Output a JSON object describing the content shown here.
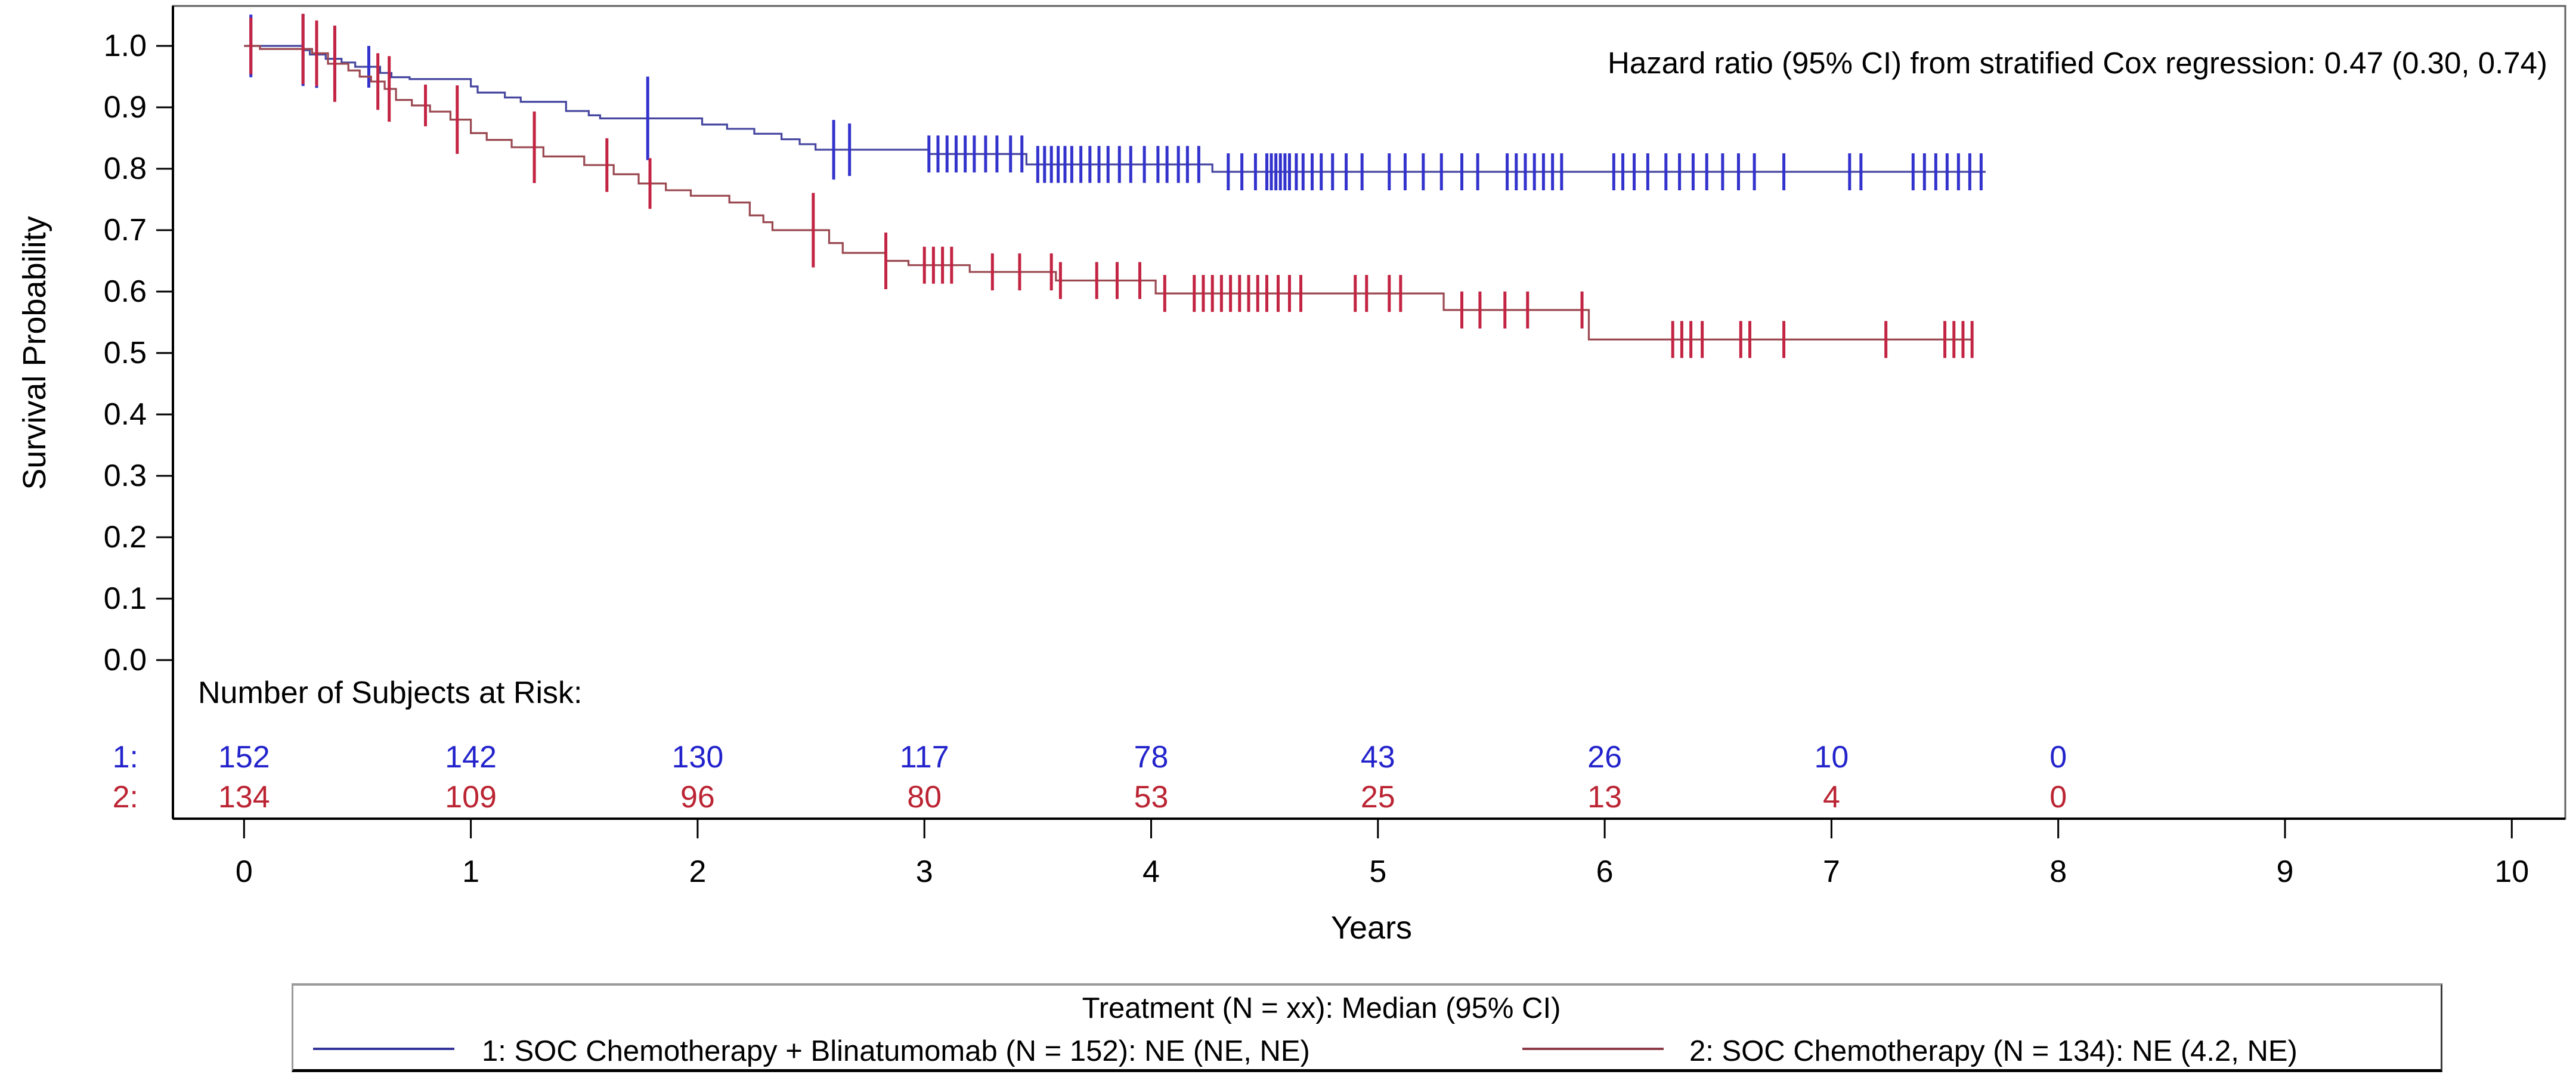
{
  "chart_data": {
    "type": "line",
    "subtype": "kaplan_meier_step",
    "title": "",
    "xlabel": "Years",
    "ylabel": "Survival Probability",
    "annotation": "Hazard ratio (95% CI) from stratified Cox regression: 0.47 (0.30, 0.74)",
    "xlim": [
      0,
      10
    ],
    "ylim": [
      0.0,
      1.0
    ],
    "xticks": [
      "0",
      "1",
      "2",
      "3",
      "4",
      "5",
      "6",
      "7",
      "8",
      "9",
      "10"
    ],
    "yticks": [
      "1.0",
      "0.9",
      "0.8",
      "0.7",
      "0.6",
      "0.5",
      "0.4",
      "0.3",
      "0.2",
      "0.1",
      "0.0"
    ],
    "grid": false,
    "legend_position": "bottom",
    "series": [
      {
        "id": "1",
        "name": "1: SOC Chemotherapy + Blinatumomab (N = 152): NE (NE, NE)",
        "line_color": "#4646a0",
        "censor_color": "#3232cd",
        "steps": [
          [
            0,
            1.0
          ],
          [
            0.26,
            0.993
          ],
          [
            0.29,
            0.986
          ],
          [
            0.36,
            0.979
          ],
          [
            0.43,
            0.973
          ],
          [
            0.49,
            0.966
          ],
          [
            0.6,
            0.956
          ],
          [
            0.65,
            0.949
          ],
          [
            0.73,
            0.946
          ],
          [
            1.0,
            0.934
          ],
          [
            1.03,
            0.924
          ],
          [
            1.15,
            0.916
          ],
          [
            1.22,
            0.909
          ],
          [
            1.42,
            0.894
          ],
          [
            1.52,
            0.887
          ],
          [
            1.57,
            0.882
          ],
          [
            2.02,
            0.872
          ],
          [
            2.13,
            0.865
          ],
          [
            2.25,
            0.857
          ],
          [
            2.37,
            0.848
          ],
          [
            2.45,
            0.84
          ],
          [
            2.52,
            0.831
          ],
          [
            3.02,
            0.824
          ],
          [
            3.45,
            0.807
          ],
          [
            4.27,
            0.795
          ]
        ],
        "end_time": 7.68,
        "censors": [
          [
            0.03,
            105
          ],
          [
            0.26,
            120
          ],
          [
            0.32,
            112
          ],
          [
            0.4,
            108
          ],
          [
            0.55,
            70
          ],
          [
            1.78,
            140
          ],
          [
            2.6,
            100
          ],
          [
            2.67,
            88
          ],
          [
            3.02,
            62
          ],
          [
            3.06,
            62
          ],
          [
            3.1,
            62
          ],
          [
            3.14,
            62
          ],
          [
            3.18,
            62
          ],
          [
            3.22,
            62
          ],
          [
            3.27,
            62
          ],
          [
            3.32,
            62
          ],
          [
            3.38,
            62
          ],
          [
            3.43,
            62
          ],
          [
            3.5,
            62
          ],
          [
            3.53,
            62
          ],
          [
            3.56,
            62
          ],
          [
            3.59,
            62
          ],
          [
            3.62,
            62
          ],
          [
            3.65,
            62
          ],
          [
            3.69,
            62
          ],
          [
            3.73,
            62
          ],
          [
            3.77,
            62
          ],
          [
            3.81,
            62
          ],
          [
            3.86,
            62
          ],
          [
            3.91,
            62
          ],
          [
            3.97,
            62
          ],
          [
            4.03,
            62
          ],
          [
            4.07,
            62
          ],
          [
            4.12,
            62
          ],
          [
            4.16,
            62
          ],
          [
            4.21,
            62
          ],
          [
            4.34,
            62
          ],
          [
            4.4,
            62
          ],
          [
            4.46,
            62
          ],
          [
            4.51,
            62
          ],
          [
            4.53,
            62
          ],
          [
            4.55,
            62
          ],
          [
            4.57,
            62
          ],
          [
            4.59,
            62
          ],
          [
            4.61,
            62
          ],
          [
            4.64,
            62
          ],
          [
            4.67,
            62
          ],
          [
            4.71,
            62
          ],
          [
            4.75,
            62
          ],
          [
            4.8,
            62
          ],
          [
            4.86,
            62
          ],
          [
            4.93,
            62
          ],
          [
            5.05,
            62
          ],
          [
            5.12,
            62
          ],
          [
            5.2,
            62
          ],
          [
            5.28,
            62
          ],
          [
            5.37,
            62
          ],
          [
            5.44,
            62
          ],
          [
            5.57,
            62
          ],
          [
            5.61,
            62
          ],
          [
            5.65,
            62
          ],
          [
            5.69,
            62
          ],
          [
            5.73,
            62
          ],
          [
            5.77,
            62
          ],
          [
            5.81,
            62
          ],
          [
            6.04,
            62
          ],
          [
            6.08,
            62
          ],
          [
            6.13,
            62
          ],
          [
            6.19,
            62
          ],
          [
            6.27,
            62
          ],
          [
            6.33,
            62
          ],
          [
            6.39,
            62
          ],
          [
            6.45,
            62
          ],
          [
            6.52,
            62
          ],
          [
            6.59,
            62
          ],
          [
            6.66,
            62
          ],
          [
            6.79,
            62
          ],
          [
            7.08,
            62
          ],
          [
            7.13,
            62
          ],
          [
            7.36,
            62
          ],
          [
            7.41,
            62
          ],
          [
            7.46,
            62
          ],
          [
            7.51,
            62
          ],
          [
            7.56,
            62
          ],
          [
            7.61,
            62
          ],
          [
            7.66,
            62
          ]
        ]
      },
      {
        "id": "2",
        "name": "2: SOC Chemotherapy (N = 134): NE (4.2, NE)",
        "line_color": "#9a4850",
        "censor_color": "#c32443",
        "steps": [
          [
            0,
            1.0
          ],
          [
            0.07,
            0.995
          ],
          [
            0.3,
            0.988
          ],
          [
            0.37,
            0.971
          ],
          [
            0.46,
            0.96
          ],
          [
            0.51,
            0.95
          ],
          [
            0.56,
            0.942
          ],
          [
            0.62,
            0.93
          ],
          [
            0.67,
            0.912
          ],
          [
            0.74,
            0.903
          ],
          [
            0.82,
            0.893
          ],
          [
            0.91,
            0.88
          ],
          [
            1.0,
            0.858
          ],
          [
            1.07,
            0.847
          ],
          [
            1.18,
            0.835
          ],
          [
            1.32,
            0.82
          ],
          [
            1.5,
            0.806
          ],
          [
            1.63,
            0.791
          ],
          [
            1.74,
            0.776
          ],
          [
            1.86,
            0.765
          ],
          [
            1.97,
            0.756
          ],
          [
            2.14,
            0.745
          ],
          [
            2.23,
            0.724
          ],
          [
            2.29,
            0.713
          ],
          [
            2.33,
            0.7
          ],
          [
            2.58,
            0.679
          ],
          [
            2.64,
            0.663
          ],
          [
            2.83,
            0.65
          ],
          [
            2.93,
            0.643
          ],
          [
            3.2,
            0.632
          ],
          [
            3.58,
            0.618
          ],
          [
            4.02,
            0.597
          ],
          [
            5.29,
            0.57
          ],
          [
            5.93,
            0.522
          ]
        ],
        "end_time": 7.62,
        "censors": [
          [
            0.03,
            95
          ],
          [
            0.26,
            118
          ],
          [
            0.32,
            110
          ],
          [
            0.4,
            128
          ],
          [
            0.59,
            95
          ],
          [
            0.64,
            110
          ],
          [
            0.8,
            70
          ],
          [
            0.94,
            115
          ],
          [
            1.28,
            120
          ],
          [
            1.6,
            90
          ],
          [
            1.79,
            85
          ],
          [
            2.51,
            125
          ],
          [
            2.83,
            95
          ],
          [
            3.0,
            62
          ],
          [
            3.04,
            62
          ],
          [
            3.08,
            62
          ],
          [
            3.12,
            62
          ],
          [
            3.3,
            62
          ],
          [
            3.42,
            62
          ],
          [
            3.56,
            62
          ],
          [
            3.6,
            62
          ],
          [
            3.76,
            62
          ],
          [
            3.85,
            62
          ],
          [
            3.95,
            62
          ],
          [
            4.06,
            62
          ],
          [
            4.19,
            62
          ],
          [
            4.23,
            62
          ],
          [
            4.27,
            62
          ],
          [
            4.31,
            62
          ],
          [
            4.35,
            62
          ],
          [
            4.39,
            62
          ],
          [
            4.43,
            62
          ],
          [
            4.47,
            62
          ],
          [
            4.51,
            62
          ],
          [
            4.56,
            62
          ],
          [
            4.61,
            62
          ],
          [
            4.66,
            62
          ],
          [
            4.9,
            62
          ],
          [
            4.95,
            62
          ],
          [
            5.05,
            62
          ],
          [
            5.1,
            62
          ],
          [
            5.37,
            62
          ],
          [
            5.45,
            62
          ],
          [
            5.56,
            62
          ],
          [
            5.66,
            62
          ],
          [
            5.9,
            62
          ],
          [
            6.3,
            62
          ],
          [
            6.34,
            62
          ],
          [
            6.38,
            62
          ],
          [
            6.43,
            62
          ],
          [
            6.6,
            62
          ],
          [
            6.64,
            62
          ],
          [
            6.79,
            62
          ],
          [
            7.24,
            62
          ],
          [
            7.5,
            62
          ],
          [
            7.54,
            62
          ],
          [
            7.58,
            62
          ],
          [
            7.62,
            62
          ]
        ]
      }
    ],
    "risk_table": {
      "title": "Number of Subjects at Risk:",
      "times": [
        0,
        1,
        2,
        3,
        4,
        5,
        6,
        7,
        8
      ],
      "rows": [
        {
          "label": "1:",
          "color": "#2323cc",
          "values": [
            "152",
            "142",
            "130",
            "117",
            "78",
            "43",
            "26",
            "10",
            "0"
          ]
        },
        {
          "label": "2:",
          "color": "#bb2433",
          "values": [
            "134",
            "109",
            "96",
            "80",
            "53",
            "25",
            "13",
            "4",
            "0"
          ]
        }
      ]
    },
    "legend": {
      "title": "Treatment (N = xx): Median (95% CI)",
      "entries": [
        {
          "label": "1: SOC Chemotherapy + Blinatumomab (N = 152): NE (NE, NE)",
          "color": "#333399"
        },
        {
          "label": "2: SOC Chemotherapy (N = 134): NE (4.2, NE)",
          "color": "#8c3a46"
        }
      ]
    }
  }
}
